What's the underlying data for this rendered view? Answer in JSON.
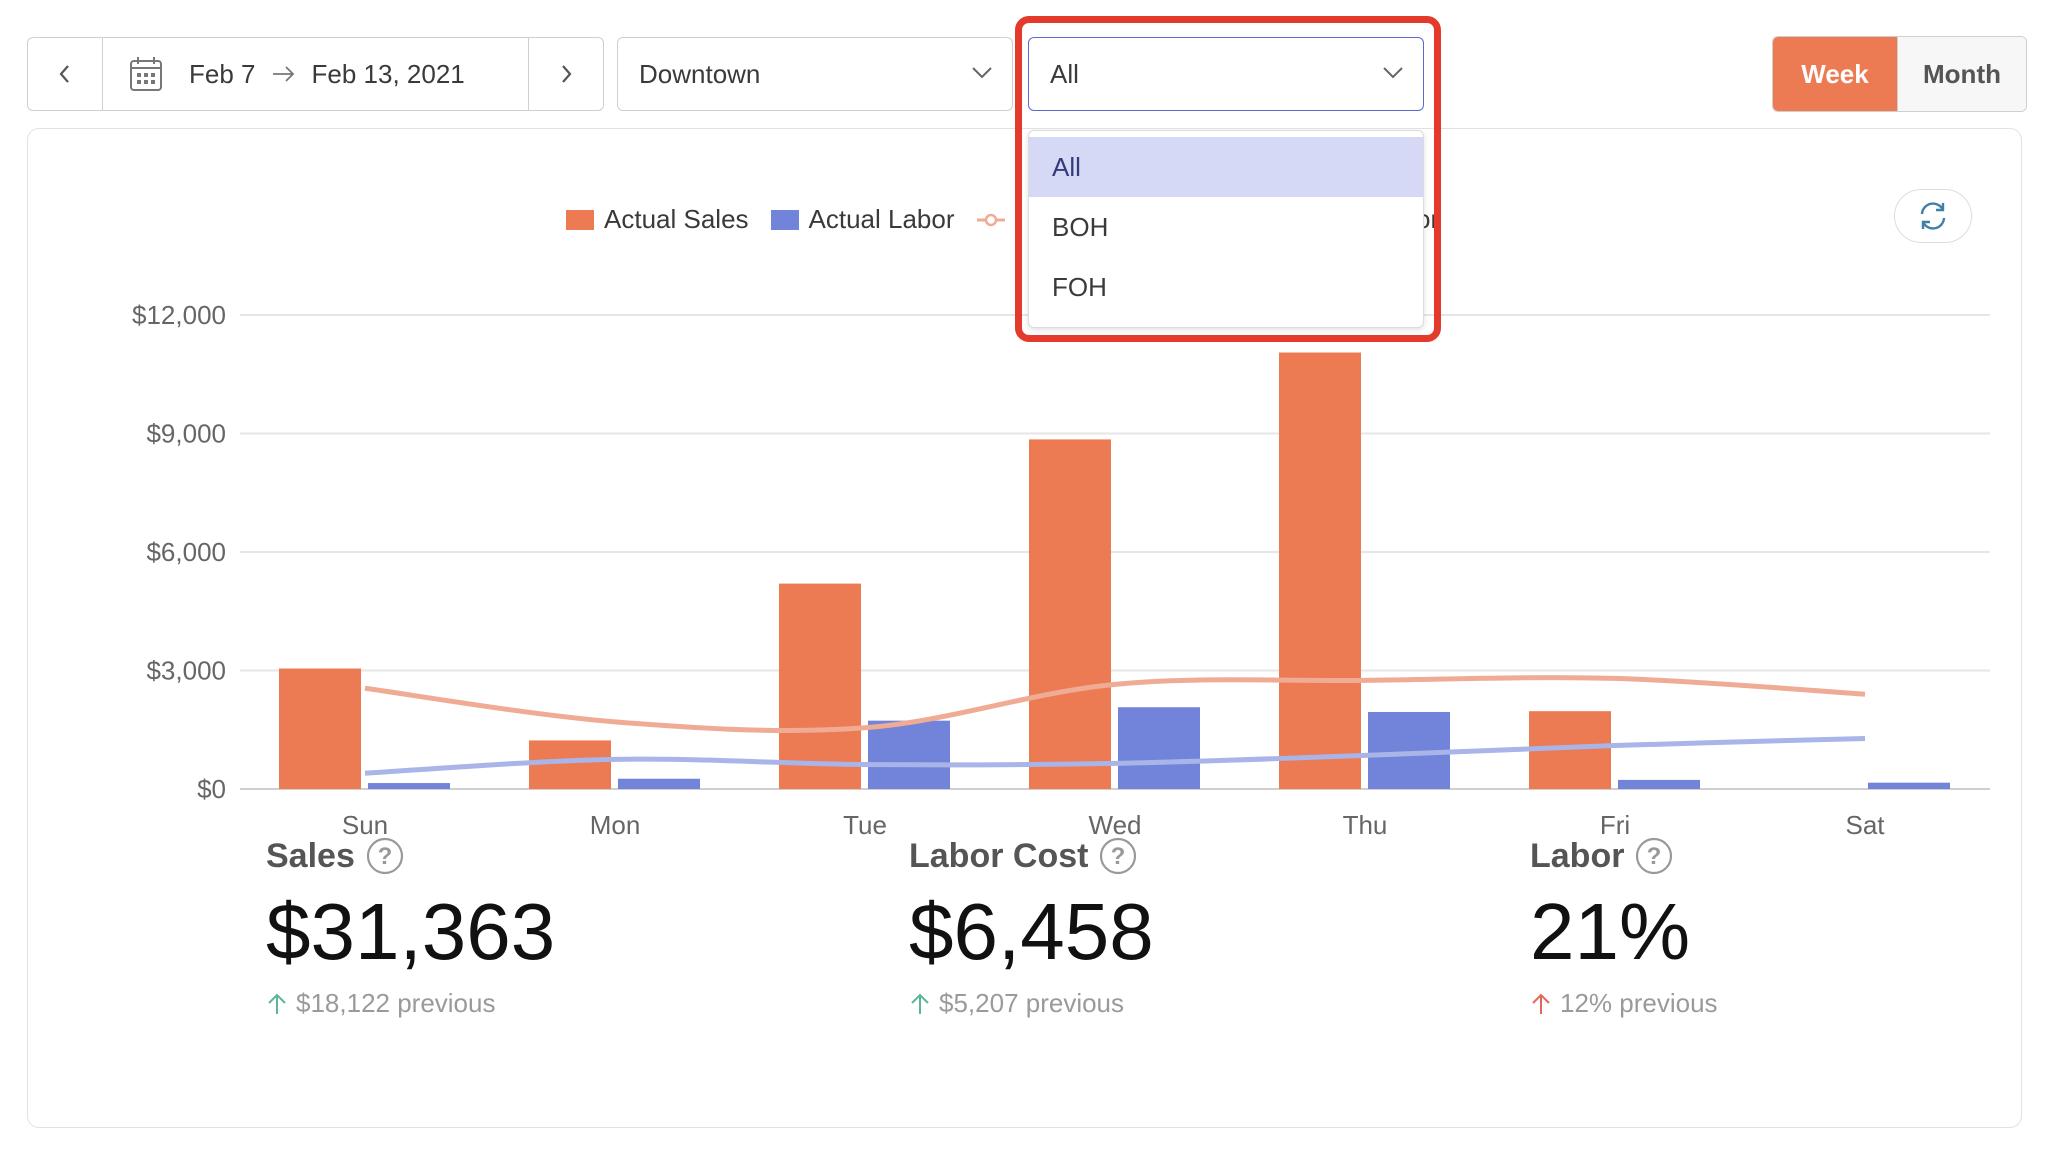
{
  "toolbar": {
    "date_start": "Feb 7",
    "date_end": "Feb 13, 2021",
    "location": "Downtown",
    "role_filter": "All",
    "view_week": "Week",
    "view_month": "Month",
    "selected_view": "Week"
  },
  "dropdown": {
    "options": [
      "All",
      "BOH",
      "FOH"
    ],
    "selected": "All"
  },
  "legend": {
    "items": [
      "Actual Sales",
      "Actual Labor",
      "I",
      "or"
    ]
  },
  "colors": {
    "accent": "#ec7a53",
    "sales_bar": "#ec7a53",
    "labor_bar": "#7184d9",
    "sales_line": "#efab94",
    "labor_line": "#a9b4e8",
    "highlight": "#e33a2b"
  },
  "chart_data": {
    "type": "bar",
    "categories": [
      "Sun",
      "Mon",
      "Tue",
      "Wed",
      "Thu",
      "Fri",
      "Sat"
    ],
    "ylim": [
      0,
      12000
    ],
    "yticks": [
      "$0",
      "$3,000",
      "$6,000",
      "$9,000",
      "$12,000"
    ],
    "ytick_values": [
      0,
      3000,
      6000,
      9000,
      12000
    ],
    "series": [
      {
        "name": "Actual Sales",
        "kind": "bar",
        "values": [
          3050,
          1230,
          5200,
          8850,
          11050,
          1970,
          0
        ]
      },
      {
        "name": "Actual Labor",
        "kind": "bar",
        "values": [
          150,
          260,
          1730,
          2070,
          1950,
          230,
          160
        ]
      },
      {
        "kind": "line",
        "values": [
          2550,
          1700,
          1550,
          2650,
          2750,
          2800,
          2400
        ]
      },
      {
        "kind": "line",
        "values": [
          400,
          750,
          620,
          650,
          850,
          1100,
          1280
        ]
      }
    ]
  },
  "metrics": [
    {
      "title": "Sales",
      "value": "$31,363",
      "previous": "$18,122 previous",
      "trend": "up-green"
    },
    {
      "title": "Labor Cost",
      "value": "$6,458",
      "previous": "$5,207 previous",
      "trend": "up-green"
    },
    {
      "title": "Labor",
      "value": "21%",
      "previous": "12% previous",
      "trend": "up-red"
    }
  ]
}
